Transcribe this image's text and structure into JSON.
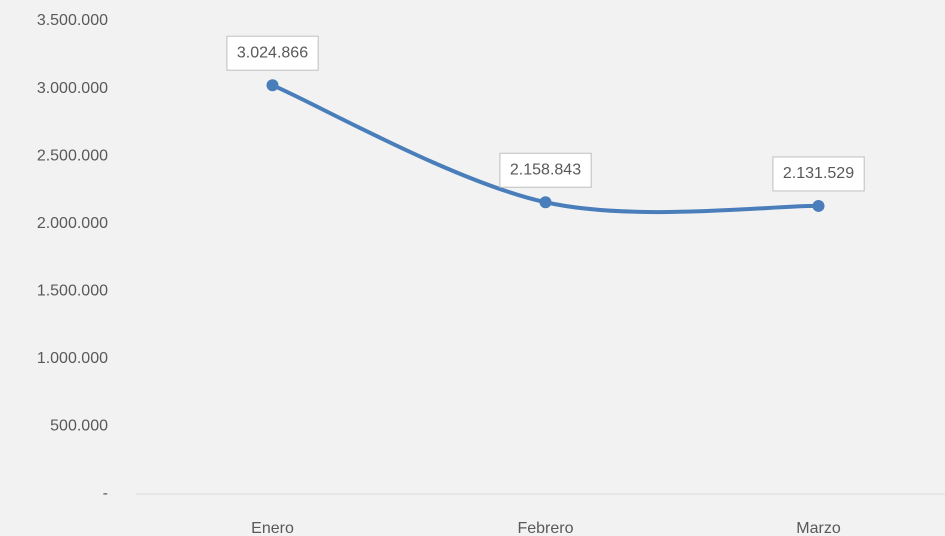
{
  "chart_data": {
    "type": "line",
    "categories": [
      "Enero",
      "Febrero",
      "Marzo"
    ],
    "series": [
      {
        "color": "#4a7ebb",
        "values": [
          3024866,
          2158843,
          2131529
        ],
        "value_labels": [
          "3.024.866",
          "2.158.843",
          "2.131.529"
        ]
      }
    ],
    "ylim": [
      0,
      3500000
    ],
    "yticks": [
      {
        "value": 0,
        "label": "-"
      },
      {
        "value": 500000,
        "label": "500.000"
      },
      {
        "value": 1000000,
        "label": "1.000.000"
      },
      {
        "value": 1500000,
        "label": "1.500.000"
      },
      {
        "value": 2000000,
        "label": "2.000.000"
      },
      {
        "value": 2500000,
        "label": "2.500.000"
      },
      {
        "value": 3000000,
        "label": "3.000.000"
      },
      {
        "value": 3500000,
        "label": "3.500.000"
      }
    ],
    "grid": false,
    "smooth": true
  }
}
